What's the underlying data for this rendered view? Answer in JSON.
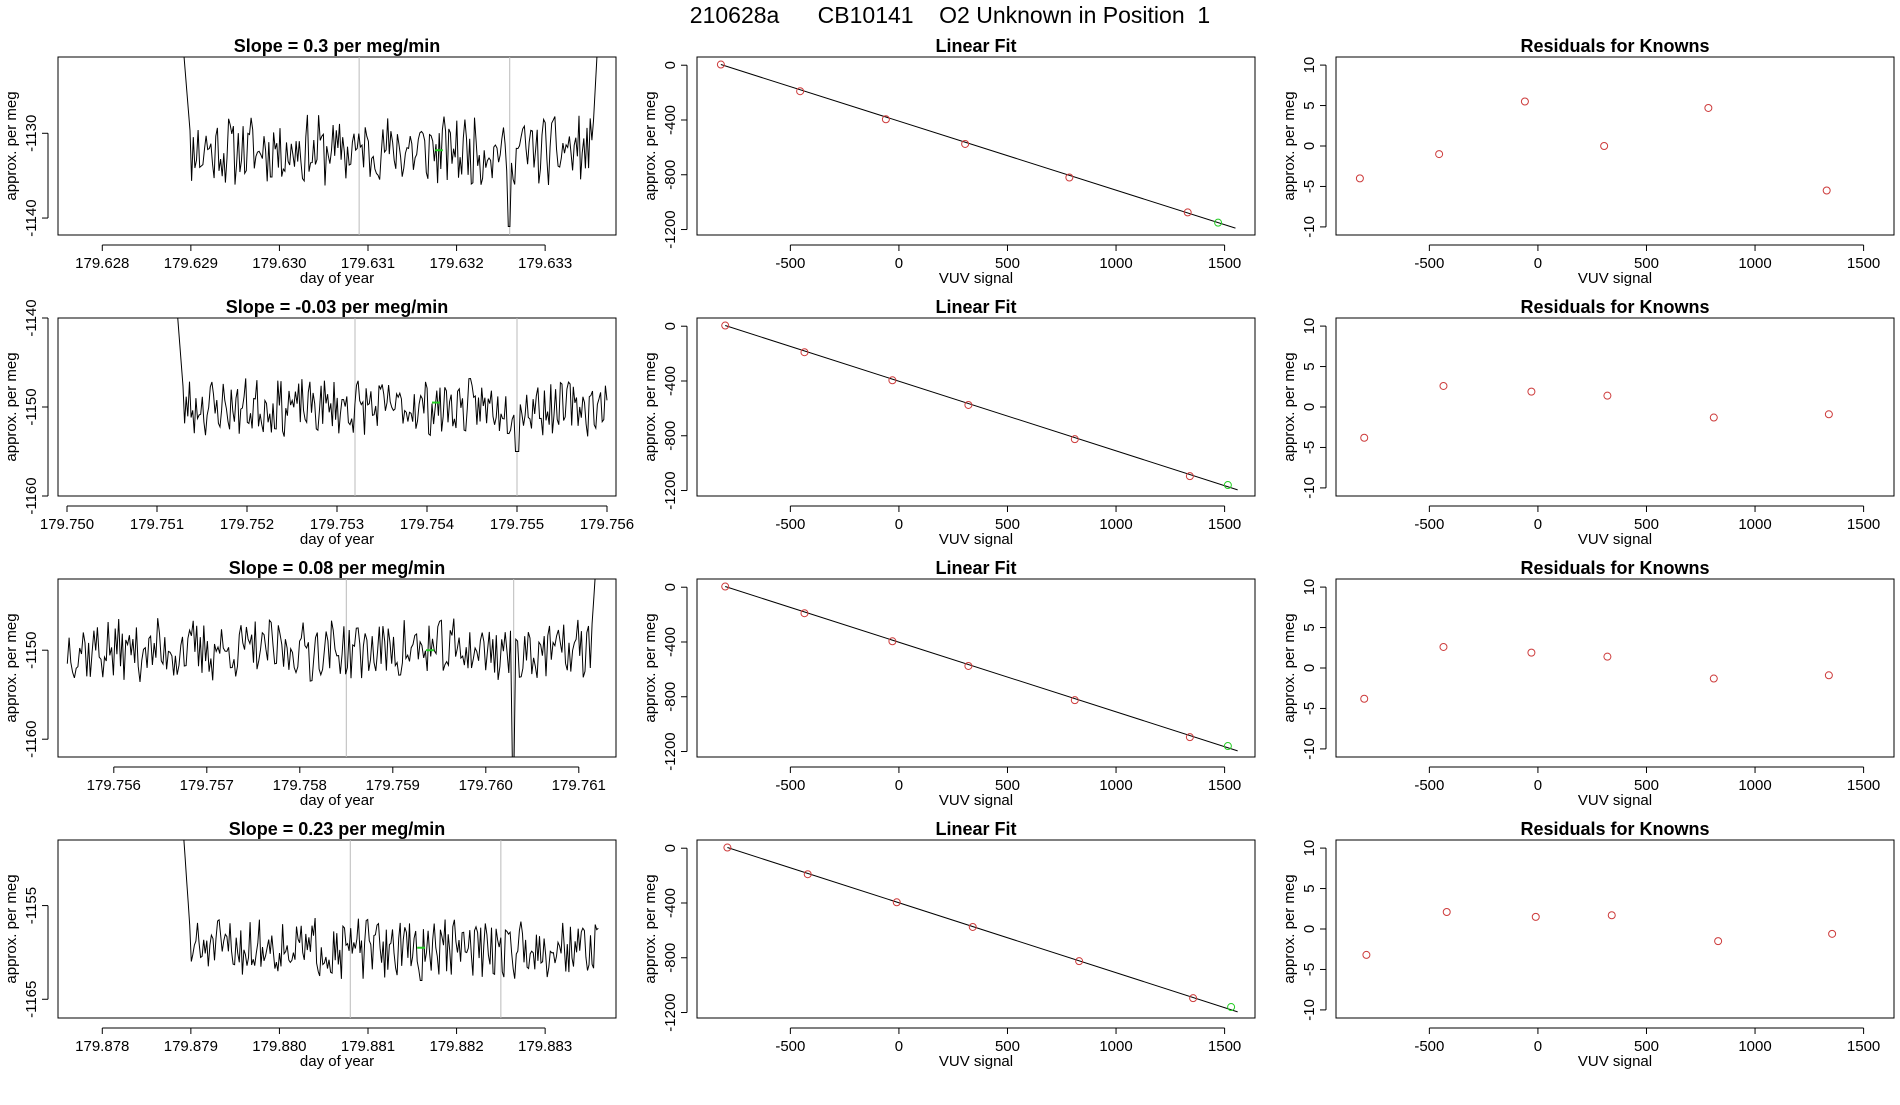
{
  "figure": {
    "title": "210628a      CB10141    O2 Unknown in Position  1",
    "colors": {
      "line": "#000000",
      "known_point": "#cd3b3b",
      "unknown_point": "#22cc22",
      "marker_line": "#bbbbbb",
      "axis": "#000000"
    }
  },
  "chart_data": [
    {
      "type": "line",
      "row": 1,
      "col": 1,
      "title": "Slope =  0.3  per meg/min",
      "xlabel": "day of year",
      "ylabel": "approx. per meg",
      "xlim": [
        179.6275,
        179.6338
      ],
      "ylim": [
        -1142,
        -1121
      ],
      "xticks": [
        179.628,
        179.629,
        179.63,
        179.631,
        179.632,
        179.633
      ],
      "xtick_labels": [
        "179.628",
        "179.629",
        "179.630",
        "179.631",
        "179.632",
        "179.633"
      ],
      "yticks": [
        -1140,
        -1130
      ],
      "ytick_labels": [
        "-1140",
        "-1130"
      ],
      "vlines": [
        179.6309,
        179.6326
      ],
      "trace": {
        "x_start": 179.6289,
        "x_end": 179.6336,
        "n": 260,
        "base": -1132,
        "amp": 2.2,
        "seed": 11,
        "start_spike": -1118,
        "end_spike": -1118,
        "dip_x": 179.6326,
        "dip_y": -1141
      },
      "highlight": {
        "x": 179.6318,
        "y": -1132,
        "color_key": "unknown_point"
      }
    },
    {
      "type": "scatter",
      "row": 1,
      "col": 2,
      "title": "Linear Fit",
      "xlabel": "VUV signal",
      "ylabel": "approx. per meg",
      "xlim": [
        -930,
        1640
      ],
      "ylim": [
        -1240,
        60
      ],
      "xticks": [
        -500,
        0,
        500,
        1000,
        1500
      ],
      "xtick_labels": [
        "-500",
        "0",
        "500",
        "1000",
        "1500"
      ],
      "yticks": [
        0,
        -400,
        -800,
        -1200
      ],
      "ytick_labels": [
        "0",
        "-400",
        "-800",
        "-1200"
      ],
      "fit_line": {
        "x1": -820,
        "y1": 5,
        "x2": 1550,
        "y2": -1190
      },
      "points": [
        {
          "x": -820,
          "y": 5
        },
        {
          "x": -455,
          "y": -190
        },
        {
          "x": -60,
          "y": -395
        },
        {
          "x": 305,
          "y": -575
        },
        {
          "x": 785,
          "y": -820
        },
        {
          "x": 1330,
          "y": -1075
        }
      ],
      "unknown": {
        "x": 1470,
        "y": -1150
      }
    },
    {
      "type": "scatter",
      "row": 1,
      "col": 3,
      "title": "Residuals for Knowns",
      "xlabel": "VUV signal",
      "ylabel": "approx. per meg",
      "xlim": [
        -930,
        1640
      ],
      "ylim": [
        -11,
        11
      ],
      "xticks": [
        -500,
        0,
        500,
        1000,
        1500
      ],
      "xtick_labels": [
        "-500",
        "0",
        "500",
        "1000",
        "1500"
      ],
      "yticks": [
        10,
        5,
        0,
        -5,
        -10
      ],
      "ytick_labels": [
        "10",
        "5",
        "0",
        "-5",
        "-10"
      ],
      "points": [
        {
          "x": -820,
          "y": -4
        },
        {
          "x": -455,
          "y": -1
        },
        {
          "x": -60,
          "y": 5.5
        },
        {
          "x": 305,
          "y": 0
        },
        {
          "x": 785,
          "y": 4.7
        },
        {
          "x": 1330,
          "y": -5.5
        }
      ]
    },
    {
      "type": "line",
      "row": 2,
      "col": 1,
      "title": "Slope =  -0.03  per meg/min",
      "xlabel": "day of year",
      "ylabel": "approx. per meg",
      "xlim": [
        179.7499,
        179.7561
      ],
      "ylim": [
        -1160,
        -1140
      ],
      "xticks": [
        179.75,
        179.751,
        179.752,
        179.753,
        179.754,
        179.755,
        179.756
      ],
      "xtick_labels": [
        "179.750",
        "179.751",
        "179.752",
        "179.753",
        "179.754",
        "179.755",
        "179.756"
      ],
      "yticks": [
        -1140,
        -1150,
        -1160
      ],
      "ytick_labels": [
        "-1140",
        "-1150",
        "-1160"
      ],
      "vlines": [
        179.7532,
        179.755
      ],
      "trace": {
        "x_start": 179.7512,
        "x_end": 179.756,
        "n": 270,
        "base": -1150,
        "amp": 1.7,
        "seed": 23,
        "start_spike": -1136,
        "end_spike": null,
        "dip_x": 179.755,
        "dip_y": -1155
      },
      "highlight": {
        "x": 179.7541,
        "y": -1149.5,
        "color_key": "unknown_point"
      }
    },
    {
      "type": "scatter",
      "row": 2,
      "col": 2,
      "title": "Linear Fit",
      "xlabel": "VUV signal",
      "ylabel": "approx. per meg",
      "xlim": [
        -930,
        1640
      ],
      "ylim": [
        -1240,
        60
      ],
      "xticks": [
        -500,
        0,
        500,
        1000,
        1500
      ],
      "xtick_labels": [
        "-500",
        "0",
        "500",
        "1000",
        "1500"
      ],
      "yticks": [
        0,
        -400,
        -800,
        -1200
      ],
      "ytick_labels": [
        "0",
        "-400",
        "-800",
        "-1200"
      ],
      "fit_line": {
        "x1": -800,
        "y1": 5,
        "x2": 1560,
        "y2": -1195
      },
      "points": [
        {
          "x": -800,
          "y": 5
        },
        {
          "x": -435,
          "y": -190
        },
        {
          "x": -30,
          "y": -395
        },
        {
          "x": 320,
          "y": -575
        },
        {
          "x": 810,
          "y": -825
        },
        {
          "x": 1340,
          "y": -1095
        }
      ],
      "unknown": {
        "x": 1515,
        "y": -1160
      }
    },
    {
      "type": "scatter",
      "row": 2,
      "col": 3,
      "title": "Residuals for Knowns",
      "xlabel": "VUV signal",
      "ylabel": "approx. per meg",
      "xlim": [
        -930,
        1640
      ],
      "ylim": [
        -11,
        11
      ],
      "xticks": [
        -500,
        0,
        500,
        1000,
        1500
      ],
      "xtick_labels": [
        "-500",
        "0",
        "500",
        "1000",
        "1500"
      ],
      "yticks": [
        10,
        5,
        0,
        -5,
        -10
      ],
      "ytick_labels": [
        "10",
        "5",
        "0",
        "-5",
        "-10"
      ],
      "points": [
        {
          "x": -800,
          "y": -3.8
        },
        {
          "x": -435,
          "y": 2.6
        },
        {
          "x": -30,
          "y": 1.9
        },
        {
          "x": 320,
          "y": 1.4
        },
        {
          "x": 810,
          "y": -1.3
        },
        {
          "x": 1340,
          "y": -0.9
        }
      ]
    },
    {
      "type": "line",
      "row": 3,
      "col": 1,
      "title": "Slope =  0.08  per meg/min",
      "xlabel": "day of year",
      "ylabel": "approx. per meg",
      "xlim": [
        179.7554,
        179.7614
      ],
      "ylim": [
        -1162,
        -1142
      ],
      "xticks": [
        179.756,
        179.757,
        179.758,
        179.759,
        179.76,
        179.761
      ],
      "xtick_labels": [
        "179.756",
        "179.757",
        "179.758",
        "179.759",
        "179.760",
        "179.761"
      ],
      "yticks": [
        -1150,
        -1160
      ],
      "ytick_labels": [
        "-1150",
        "-1160"
      ],
      "vlines": [
        179.7585,
        179.7603
      ],
      "trace": {
        "x_start": 179.7555,
        "x_end": 179.7612,
        "n": 300,
        "base": -1150,
        "amp": 1.9,
        "seed": 37,
        "start_spike": null,
        "end_spike": -1138,
        "dip_x": 179.7603,
        "dip_y": -1162
      },
      "highlight": {
        "x": 179.7594,
        "y": -1150,
        "color_key": "unknown_point"
      }
    },
    {
      "type": "scatter",
      "row": 3,
      "col": 2,
      "title": "Linear Fit",
      "xlabel": "VUV signal",
      "ylabel": "approx. per meg",
      "xlim": [
        -930,
        1640
      ],
      "ylim": [
        -1240,
        60
      ],
      "xticks": [
        -500,
        0,
        500,
        1000,
        1500
      ],
      "xtick_labels": [
        "-500",
        "0",
        "500",
        "1000",
        "1500"
      ],
      "yticks": [
        0,
        -400,
        -800,
        -1200
      ],
      "ytick_labels": [
        "0",
        "-400",
        "-800",
        "-1200"
      ],
      "fit_line": {
        "x1": -800,
        "y1": 5,
        "x2": 1560,
        "y2": -1195
      },
      "points": [
        {
          "x": -800,
          "y": 5
        },
        {
          "x": -435,
          "y": -190
        },
        {
          "x": -30,
          "y": -395
        },
        {
          "x": 320,
          "y": -575
        },
        {
          "x": 810,
          "y": -825
        },
        {
          "x": 1340,
          "y": -1095
        }
      ],
      "unknown": {
        "x": 1515,
        "y": -1160
      }
    },
    {
      "type": "scatter",
      "row": 3,
      "col": 3,
      "title": "Residuals for Knowns",
      "xlabel": "VUV signal",
      "ylabel": "approx. per meg",
      "xlim": [
        -930,
        1640
      ],
      "ylim": [
        -11,
        11
      ],
      "xticks": [
        -500,
        0,
        500,
        1000,
        1500
      ],
      "xtick_labels": [
        "-500",
        "0",
        "500",
        "1000",
        "1500"
      ],
      "yticks": [
        10,
        5,
        0,
        -5,
        -10
      ],
      "ytick_labels": [
        "10",
        "5",
        "0",
        "-5",
        "-10"
      ],
      "points": [
        {
          "x": -800,
          "y": -3.8
        },
        {
          "x": -435,
          "y": 2.6
        },
        {
          "x": -30,
          "y": 1.9
        },
        {
          "x": 320,
          "y": 1.4
        },
        {
          "x": 810,
          "y": -1.3
        },
        {
          "x": 1340,
          "y": -0.9
        }
      ]
    },
    {
      "type": "line",
      "row": 4,
      "col": 1,
      "title": "Slope =  0.23  per meg/min",
      "xlabel": "day of year",
      "ylabel": "approx. per meg",
      "xlim": [
        179.8775,
        179.8838
      ],
      "ylim": [
        -1167,
        -1148
      ],
      "xticks": [
        179.878,
        179.879,
        179.88,
        179.881,
        179.882,
        179.883
      ],
      "xtick_labels": [
        "179.878",
        "179.879",
        "179.880",
        "179.881",
        "179.882",
        "179.883"
      ],
      "yticks": [
        -1155,
        -1165
      ],
      "ytick_labels": [
        "-1155",
        "-1165"
      ],
      "vlines": [
        179.8808,
        179.8825
      ],
      "trace": {
        "x_start": 179.8789,
        "x_end": 179.8836,
        "n": 270,
        "base": -1159.5,
        "amp": 1.7,
        "seed": 51,
        "start_spike": -1145,
        "end_spike": null,
        "dip_x": 179.8816,
        "dip_y": -1163
      },
      "highlight": {
        "x": 179.8816,
        "y": -1159.5,
        "color_key": "unknown_point"
      }
    },
    {
      "type": "scatter",
      "row": 4,
      "col": 2,
      "title": "Linear Fit",
      "xlabel": "VUV signal",
      "ylabel": "approx. per meg",
      "xlim": [
        -930,
        1640
      ],
      "ylim": [
        -1240,
        60
      ],
      "xticks": [
        -500,
        0,
        500,
        1000,
        1500
      ],
      "xtick_labels": [
        "-500",
        "0",
        "500",
        "1000",
        "1500"
      ],
      "yticks": [
        0,
        -400,
        -800,
        -1200
      ],
      "ytick_labels": [
        "0",
        "-400",
        "-800",
        "-1200"
      ],
      "fit_line": {
        "x1": -790,
        "y1": 5,
        "x2": 1560,
        "y2": -1195
      },
      "points": [
        {
          "x": -790,
          "y": 5
        },
        {
          "x": -420,
          "y": -190
        },
        {
          "x": -10,
          "y": -395
        },
        {
          "x": 340,
          "y": -575
        },
        {
          "x": 830,
          "y": -825
        },
        {
          "x": 1355,
          "y": -1095
        }
      ],
      "unknown": {
        "x": 1530,
        "y": -1160
      }
    },
    {
      "type": "scatter",
      "row": 4,
      "col": 3,
      "title": "Residuals for Knowns",
      "xlabel": "VUV signal",
      "ylabel": "approx. per meg",
      "xlim": [
        -930,
        1640
      ],
      "ylim": [
        -11,
        11
      ],
      "xticks": [
        -500,
        0,
        500,
        1000,
        1500
      ],
      "xtick_labels": [
        "-500",
        "0",
        "500",
        "1000",
        "1500"
      ],
      "yticks": [
        10,
        5,
        0,
        -5,
        -10
      ],
      "ytick_labels": [
        "10",
        "5",
        "0",
        "-5",
        "-10"
      ],
      "points": [
        {
          "x": -790,
          "y": -3.2
        },
        {
          "x": -420,
          "y": 2.1
        },
        {
          "x": -10,
          "y": 1.5
        },
        {
          "x": 340,
          "y": 1.7
        },
        {
          "x": 830,
          "y": -1.5
        },
        {
          "x": 1355,
          "y": -0.6
        }
      ]
    }
  ]
}
